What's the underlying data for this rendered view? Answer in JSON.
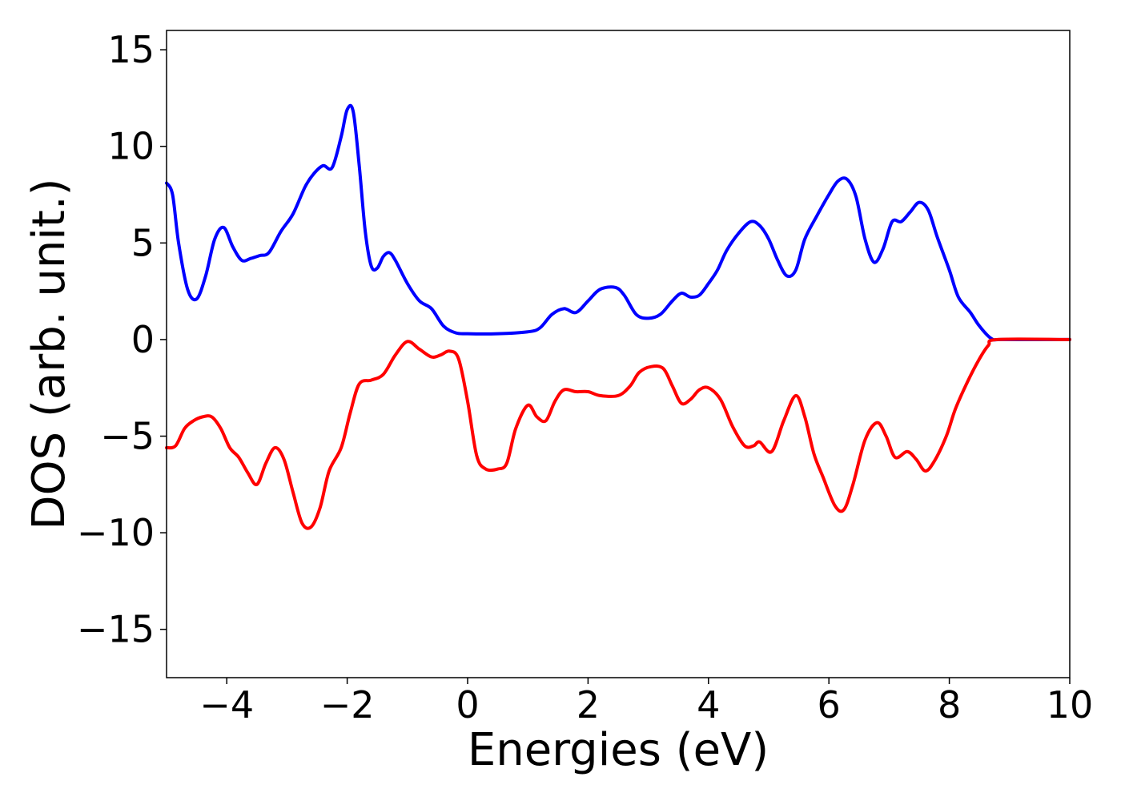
{
  "chart_data": {
    "type": "line",
    "title": "",
    "xlabel": "Energies (eV)",
    "ylabel": "DOS (arb. unit.)",
    "xlim": [
      -5,
      10
    ],
    "ylim": [
      -17.5,
      16
    ],
    "grid": false,
    "legend": "none",
    "x_ticks": [
      -4,
      -2,
      0,
      2,
      4,
      6,
      8,
      10
    ],
    "x_tick_labels": [
      "−4",
      "−2",
      "0",
      "2",
      "4",
      "6",
      "8",
      "10"
    ],
    "y_ticks": [
      -15,
      -10,
      -5,
      0,
      5,
      10,
      15
    ],
    "y_tick_labels": [
      "−15",
      "−10",
      "−5",
      "0",
      "5",
      "10",
      "15"
    ],
    "series": [
      {
        "color": "#0000ff",
        "points": [
          [
            -5.0,
            8.1
          ],
          [
            -4.9,
            7.5
          ],
          [
            -4.8,
            5.0
          ],
          [
            -4.65,
            2.6
          ],
          [
            -4.5,
            2.1
          ],
          [
            -4.35,
            3.3
          ],
          [
            -4.2,
            5.2
          ],
          [
            -4.05,
            5.8
          ],
          [
            -3.9,
            4.8
          ],
          [
            -3.75,
            4.1
          ],
          [
            -3.6,
            4.2
          ],
          [
            -3.45,
            4.35
          ],
          [
            -3.3,
            4.5
          ],
          [
            -3.1,
            5.6
          ],
          [
            -2.9,
            6.5
          ],
          [
            -2.7,
            7.9
          ],
          [
            -2.55,
            8.6
          ],
          [
            -2.4,
            9.0
          ],
          [
            -2.25,
            8.9
          ],
          [
            -2.1,
            10.5
          ],
          [
            -2.0,
            11.9
          ],
          [
            -1.9,
            11.8
          ],
          [
            -1.8,
            9.0
          ],
          [
            -1.7,
            5.6
          ],
          [
            -1.6,
            3.8
          ],
          [
            -1.5,
            3.7
          ],
          [
            -1.4,
            4.3
          ],
          [
            -1.3,
            4.5
          ],
          [
            -1.2,
            4.1
          ],
          [
            -1.0,
            2.9
          ],
          [
            -0.8,
            2.0
          ],
          [
            -0.6,
            1.6
          ],
          [
            -0.4,
            0.7
          ],
          [
            -0.2,
            0.35
          ],
          [
            0.0,
            0.3
          ],
          [
            0.5,
            0.3
          ],
          [
            1.0,
            0.4
          ],
          [
            1.2,
            0.6
          ],
          [
            1.4,
            1.3
          ],
          [
            1.6,
            1.6
          ],
          [
            1.8,
            1.4
          ],
          [
            2.0,
            2.0
          ],
          [
            2.2,
            2.6
          ],
          [
            2.45,
            2.7
          ],
          [
            2.6,
            2.3
          ],
          [
            2.8,
            1.3
          ],
          [
            3.0,
            1.1
          ],
          [
            3.2,
            1.3
          ],
          [
            3.4,
            2.0
          ],
          [
            3.55,
            2.4
          ],
          [
            3.7,
            2.2
          ],
          [
            3.85,
            2.3
          ],
          [
            4.0,
            2.9
          ],
          [
            4.15,
            3.6
          ],
          [
            4.3,
            4.6
          ],
          [
            4.5,
            5.5
          ],
          [
            4.7,
            6.1
          ],
          [
            4.85,
            5.9
          ],
          [
            5.0,
            5.2
          ],
          [
            5.15,
            4.1
          ],
          [
            5.3,
            3.3
          ],
          [
            5.45,
            3.6
          ],
          [
            5.6,
            5.2
          ],
          [
            5.8,
            6.4
          ],
          [
            6.0,
            7.5
          ],
          [
            6.15,
            8.2
          ],
          [
            6.3,
            8.3
          ],
          [
            6.45,
            7.4
          ],
          [
            6.6,
            5.2
          ],
          [
            6.75,
            4.0
          ],
          [
            6.9,
            4.7
          ],
          [
            7.05,
            6.1
          ],
          [
            7.2,
            6.1
          ],
          [
            7.35,
            6.6
          ],
          [
            7.5,
            7.1
          ],
          [
            7.65,
            6.7
          ],
          [
            7.8,
            5.3
          ],
          [
            8.0,
            3.6
          ],
          [
            8.15,
            2.2
          ],
          [
            8.35,
            1.4
          ],
          [
            8.5,
            0.7
          ],
          [
            8.7,
            0.05
          ],
          [
            8.9,
            0.0
          ],
          [
            10.0,
            0.0
          ]
        ]
      },
      {
        "color": "#ff0000",
        "points": [
          [
            -5.0,
            -5.6
          ],
          [
            -4.85,
            -5.5
          ],
          [
            -4.7,
            -4.6
          ],
          [
            -4.55,
            -4.2
          ],
          [
            -4.4,
            -4.0
          ],
          [
            -4.25,
            -4.0
          ],
          [
            -4.1,
            -4.6
          ],
          [
            -3.95,
            -5.6
          ],
          [
            -3.8,
            -6.1
          ],
          [
            -3.65,
            -6.9
          ],
          [
            -3.5,
            -7.5
          ],
          [
            -3.35,
            -6.4
          ],
          [
            -3.2,
            -5.6
          ],
          [
            -3.05,
            -6.2
          ],
          [
            -2.9,
            -7.9
          ],
          [
            -2.75,
            -9.5
          ],
          [
            -2.6,
            -9.7
          ],
          [
            -2.45,
            -8.7
          ],
          [
            -2.3,
            -6.8
          ],
          [
            -2.1,
            -5.6
          ],
          [
            -1.95,
            -3.8
          ],
          [
            -1.8,
            -2.3
          ],
          [
            -1.6,
            -2.1
          ],
          [
            -1.4,
            -1.8
          ],
          [
            -1.2,
            -0.8
          ],
          [
            -1.0,
            -0.1
          ],
          [
            -0.8,
            -0.5
          ],
          [
            -0.6,
            -0.9
          ],
          [
            -0.45,
            -0.8
          ],
          [
            -0.3,
            -0.6
          ],
          [
            -0.15,
            -1.0
          ],
          [
            0.0,
            -3.2
          ],
          [
            0.15,
            -6.0
          ],
          [
            0.3,
            -6.7
          ],
          [
            0.5,
            -6.7
          ],
          [
            0.65,
            -6.4
          ],
          [
            0.8,
            -4.6
          ],
          [
            1.0,
            -3.4
          ],
          [
            1.15,
            -4.0
          ],
          [
            1.3,
            -4.2
          ],
          [
            1.45,
            -3.2
          ],
          [
            1.6,
            -2.6
          ],
          [
            1.8,
            -2.7
          ],
          [
            2.0,
            -2.7
          ],
          [
            2.2,
            -2.9
          ],
          [
            2.5,
            -2.9
          ],
          [
            2.7,
            -2.4
          ],
          [
            2.85,
            -1.7
          ],
          [
            3.05,
            -1.4
          ],
          [
            3.25,
            -1.5
          ],
          [
            3.4,
            -2.4
          ],
          [
            3.55,
            -3.3
          ],
          [
            3.7,
            -3.1
          ],
          [
            3.85,
            -2.6
          ],
          [
            4.0,
            -2.5
          ],
          [
            4.2,
            -3.1
          ],
          [
            4.4,
            -4.5
          ],
          [
            4.6,
            -5.5
          ],
          [
            4.75,
            -5.5
          ],
          [
            4.85,
            -5.3
          ],
          [
            5.05,
            -5.8
          ],
          [
            5.25,
            -4.2
          ],
          [
            5.45,
            -2.9
          ],
          [
            5.6,
            -4.0
          ],
          [
            5.75,
            -5.9
          ],
          [
            5.9,
            -7.1
          ],
          [
            6.1,
            -8.6
          ],
          [
            6.25,
            -8.8
          ],
          [
            6.4,
            -7.5
          ],
          [
            6.6,
            -5.2
          ],
          [
            6.8,
            -4.3
          ],
          [
            6.95,
            -5.0
          ],
          [
            7.1,
            -6.1
          ],
          [
            7.3,
            -5.8
          ],
          [
            7.45,
            -6.2
          ],
          [
            7.6,
            -6.8
          ],
          [
            7.75,
            -6.3
          ],
          [
            7.95,
            -5.0
          ],
          [
            8.1,
            -3.6
          ],
          [
            8.3,
            -2.2
          ],
          [
            8.5,
            -1.0
          ],
          [
            8.65,
            -0.3
          ],
          [
            8.8,
            0.0
          ],
          [
            10.0,
            0.0
          ]
        ]
      }
    ]
  }
}
